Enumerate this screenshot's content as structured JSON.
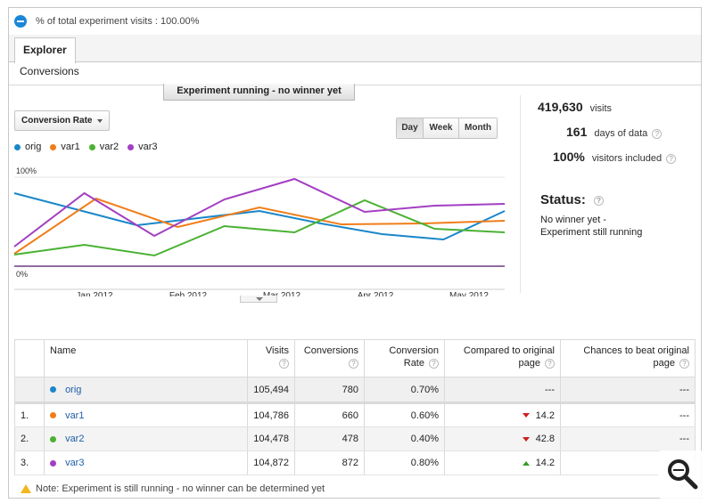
{
  "segment": {
    "text": "% of total experiment visits : 100.00%"
  },
  "tabs": {
    "explorer": "Explorer",
    "conversions": "Conversions"
  },
  "banner": "Experiment running - no winner yet",
  "metric_select": "Conversion Rate",
  "range": {
    "day": "Day",
    "week": "Week",
    "month": "Month",
    "active": "Day"
  },
  "legend": [
    {
      "name": "orig",
      "color": "#1a87c9"
    },
    {
      "name": "var1",
      "color": "#f07d1a"
    },
    {
      "name": "var2",
      "color": "#4ab233"
    },
    {
      "name": "var3",
      "color": "#a33fc2"
    }
  ],
  "chart_data": {
    "type": "line",
    "ytick_top": "100%",
    "ytick_bottom": "0%",
    "xticks": [
      "Jan 2012",
      "Feb 2012",
      "Mar 2012",
      "Apr 2012",
      "May 2012"
    ],
    "ylim": [
      0,
      100
    ],
    "series": [
      {
        "name": "orig",
        "color": "#1a87c9",
        "values": [
          82,
          64,
          46,
          54,
          62,
          48,
          36,
          30,
          62
        ]
      },
      {
        "name": "var1",
        "color": "#f07d1a",
        "values": [
          14,
          76,
          44,
          66,
          47,
          48,
          51
        ]
      },
      {
        "name": "var2",
        "color": "#4ab233",
        "values": [
          13,
          24,
          12,
          45,
          38,
          74,
          42,
          38
        ]
      },
      {
        "name": "var3",
        "color": "#a33fc2",
        "values": [
          22,
          82,
          34,
          75,
          98,
          61,
          68,
          70
        ]
      },
      {
        "name": "",
        "color": "#6a3b7f",
        "values": [
          0,
          0
        ]
      }
    ]
  },
  "stats": [
    {
      "value": "419,630",
      "label": "visits",
      "help": false
    },
    {
      "value": "161",
      "label": "days of data",
      "help": true
    },
    {
      "value": "100%",
      "label": "visitors included",
      "help": true
    }
  ],
  "status": {
    "title": "Status:",
    "line1": "No winner yet -",
    "line2": "Experiment still running"
  },
  "table": {
    "headers": {
      "name": "Name",
      "visits": "Visits",
      "conversions": "Conversions",
      "rate_1": "Conversion",
      "rate_2": "Rate",
      "compared_1": "Compared to original",
      "compared_2": "page",
      "chances_1": "Chances to beat original",
      "chances_2": "page"
    },
    "original": {
      "name": "orig",
      "color": "#1a87c9",
      "visits": "105,494",
      "conversions": "780",
      "rate": "0.70%",
      "compared": "---",
      "chances": "---"
    },
    "rows": [
      {
        "num": "1.",
        "name": "var1",
        "color": "#f07d1a",
        "visits": "104,786",
        "conversions": "660",
        "rate": "0.60%",
        "compared": "14.2",
        "direction": "down",
        "chances": "---"
      },
      {
        "num": "2.",
        "name": "var2",
        "color": "#4ab233",
        "visits": "104,478",
        "conversions": "478",
        "rate": "0.40%",
        "compared": "42.8",
        "direction": "down",
        "chances": "---"
      },
      {
        "num": "3.",
        "name": "var3",
        "color": "#a33fc2",
        "visits": "104,872",
        "conversions": "872",
        "rate": "0.80%",
        "compared": "14.2",
        "direction": "up",
        "chances": "---"
      }
    ]
  },
  "note": "Note: Experiment is still running - no winner can be determined yet"
}
